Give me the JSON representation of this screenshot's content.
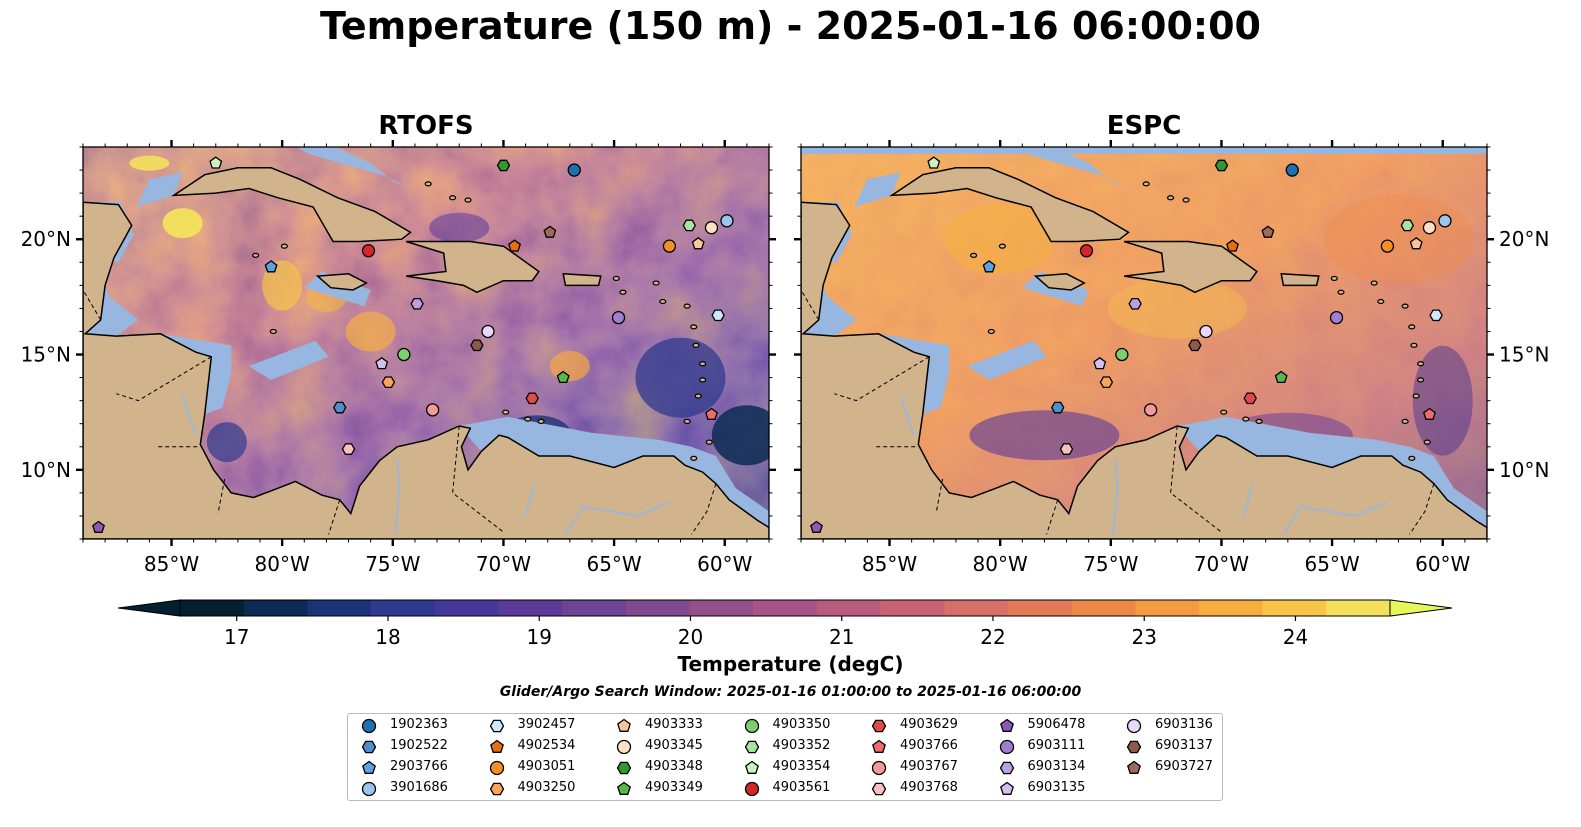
{
  "title": "Temperature (150 m) - 2025-01-16 06:00:00",
  "panels": [
    {
      "title": "RTOFS"
    },
    {
      "title": "ESPC"
    }
  ],
  "colorbar": {
    "label": "Temperature (degC)",
    "ticks": [
      "17",
      "18",
      "19",
      "20",
      "21",
      "22",
      "23",
      "24"
    ],
    "range": [
      16.75,
      24.75
    ],
    "step": 0.5,
    "colors": [
      "#04202f",
      "#0c2a55",
      "#1d3378",
      "#2f3a8f",
      "#45389b",
      "#5b3a9a",
      "#6e4393",
      "#7f4b8e",
      "#934f8a",
      "#a65586",
      "#b85c7f",
      "#c86476",
      "#d86e68",
      "#e47a58",
      "#ee8848",
      "#f49a40",
      "#f7ad3e",
      "#f8c548",
      "#f3e15c"
    ],
    "under_color": "#04202f",
    "over_color": "#e5f65a"
  },
  "map_colors": {
    "land": "#d2b48c",
    "shelf_water": "#97b6e0",
    "coast": "#000000"
  },
  "search_window": "Glider/Argo Search Window: 2025-01-16 01:00:00 to 2025-01-16 06:00:00",
  "axes": {
    "lon_ticks": [
      "85°W",
      "80°W",
      "75°W",
      "70°W",
      "65°W",
      "60°W"
    ],
    "lat_ticks": [
      "10°N",
      "15°N",
      "20°N"
    ]
  },
  "chart_data": {
    "type": "heatmap",
    "title": "Temperature (150 m) - 2025-01-16 06:00:00",
    "extent": {
      "lon": [
        -89,
        -58
      ],
      "lat": [
        7,
        24
      ]
    },
    "colorbar_label": "Temperature (degC)",
    "value_range": [
      17,
      24
    ],
    "panels": [
      "RTOFS",
      "ESPC"
    ],
    "floats": [
      {
        "id": "1902363",
        "lon": -66.8,
        "lat": 23.0,
        "marker": "circle",
        "color": "#1f6fb4"
      },
      {
        "id": "1902522",
        "lon": -77.4,
        "lat": 12.7,
        "marker": "hexagon",
        "color": "#4f8fcc"
      },
      {
        "id": "2903766",
        "lon": -80.5,
        "lat": 18.8,
        "marker": "pentagon",
        "color": "#5aa2e0"
      },
      {
        "id": "3901686",
        "lon": -59.9,
        "lat": 20.8,
        "marker": "circle",
        "color": "#9ac6ee"
      },
      {
        "id": "3902457",
        "lon": -60.3,
        "lat": 16.7,
        "marker": "hexagon",
        "color": "#cfe8fb"
      },
      {
        "id": "4902534",
        "lon": -69.5,
        "lat": 19.7,
        "marker": "pentagon",
        "color": "#e66f10"
      },
      {
        "id": "4903051",
        "lon": -62.5,
        "lat": 19.7,
        "marker": "circle",
        "color": "#f58f2a"
      },
      {
        "id": "4903250",
        "lon": -75.2,
        "lat": 13.8,
        "marker": "hexagon",
        "color": "#f6a55a"
      },
      {
        "id": "4903333",
        "lon": -61.2,
        "lat": 19.8,
        "marker": "pentagon",
        "color": "#fac695"
      },
      {
        "id": "4903345",
        "lon": -60.6,
        "lat": 20.5,
        "marker": "circle",
        "color": "#fde1c5"
      },
      {
        "id": "4903348",
        "lon": -70.0,
        "lat": 23.2,
        "marker": "hexagon",
        "color": "#2e9a2e"
      },
      {
        "id": "4903349",
        "lon": -67.3,
        "lat": 14.0,
        "marker": "pentagon",
        "color": "#58b848"
      },
      {
        "id": "4903350",
        "lon": -74.5,
        "lat": 15.0,
        "marker": "circle",
        "color": "#7ccf6a"
      },
      {
        "id": "4903352",
        "lon": -61.6,
        "lat": 20.6,
        "marker": "hexagon",
        "color": "#a8e3a0"
      },
      {
        "id": "4903354",
        "lon": -83.0,
        "lat": 23.3,
        "marker": "pentagon",
        "color": "#ccf2c0"
      },
      {
        "id": "4903561",
        "lon": -76.1,
        "lat": 19.5,
        "marker": "circle",
        "color": "#d62728"
      },
      {
        "id": "4903629",
        "lon": -68.7,
        "lat": 13.1,
        "marker": "hexagon",
        "color": "#e24a4a"
      },
      {
        "id": "4903766",
        "lon": -60.6,
        "lat": 12.4,
        "marker": "pentagon",
        "color": "#ee6c6c"
      },
      {
        "id": "4903767",
        "lon": -73.2,
        "lat": 12.6,
        "marker": "circle",
        "color": "#f49a9a"
      },
      {
        "id": "4903768",
        "lon": -77.0,
        "lat": 10.9,
        "marker": "hexagon",
        "color": "#f8c0c0"
      },
      {
        "id": "5906478",
        "lon": -88.3,
        "lat": 7.5,
        "marker": "pentagon",
        "color": "#8a5ab8"
      },
      {
        "id": "6903111",
        "lon": -64.8,
        "lat": 16.6,
        "marker": "circle",
        "color": "#a07fd0"
      },
      {
        "id": "6903134",
        "lon": -73.9,
        "lat": 17.2,
        "marker": "hexagon",
        "color": "#bb9fde"
      },
      {
        "id": "6903135",
        "lon": -75.5,
        "lat": 14.6,
        "marker": "pentagon",
        "color": "#d3c0ee"
      },
      {
        "id": "6903136",
        "lon": -70.7,
        "lat": 16.0,
        "marker": "circle",
        "color": "#ead8fa"
      },
      {
        "id": "6903137",
        "lon": -71.2,
        "lat": 15.4,
        "marker": "hexagon",
        "color": "#8b5a48"
      },
      {
        "id": "6903727",
        "lon": -67.9,
        "lat": 20.3,
        "marker": "pentagon",
        "color": "#9e6b5a"
      }
    ]
  }
}
